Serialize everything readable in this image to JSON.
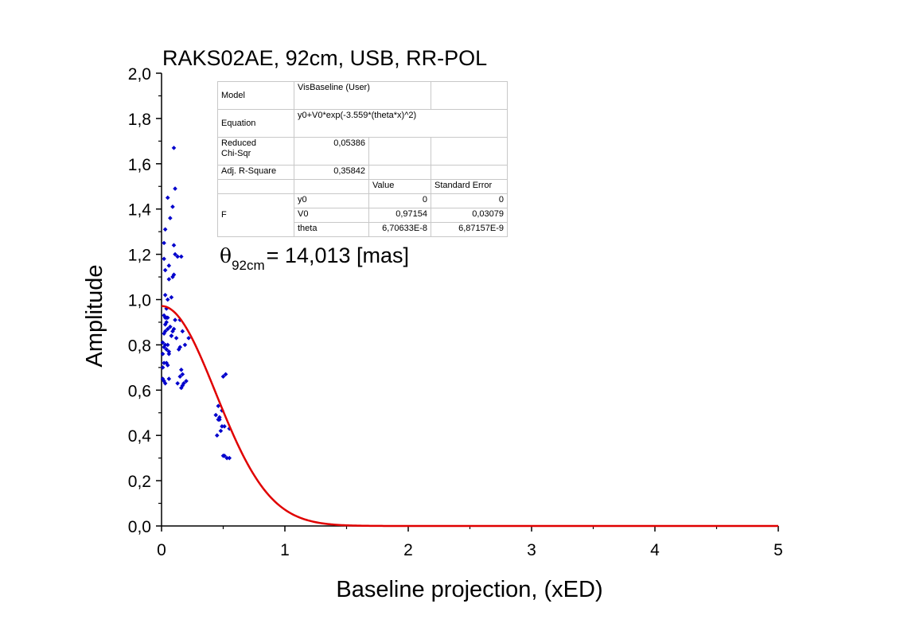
{
  "chart_data": {
    "type": "scatter",
    "title": "RAKS02AE, 92cm, USB, RR-POL",
    "xlabel": "Baseline projection, (xED)",
    "ylabel": "Amplitude",
    "xlim": [
      0,
      5
    ],
    "ylim": [
      0,
      2.0
    ],
    "x_ticks": [
      "0",
      "1",
      "2",
      "3",
      "4",
      "5"
    ],
    "y_ticks": [
      "0,0",
      "0,2",
      "0,4",
      "0,6",
      "0,8",
      "1,0",
      "1,2",
      "1,4",
      "1,6",
      "1,8",
      "2,0"
    ],
    "grid": false,
    "colors": {
      "points": "#0000cc",
      "fit": "#e00000",
      "axes": "#000000"
    },
    "points": {
      "x": [
        0.1,
        0.02,
        0.03,
        0.05,
        0.07,
        0.09,
        0.11,
        0.1,
        0.13,
        0.02,
        0.03,
        0.06,
        0.1,
        0.11,
        0.16,
        0.06,
        0.09,
        0.03,
        0.05,
        0.04,
        0.02,
        0.05,
        0.07,
        0.09,
        0.11,
        0.15,
        0.17,
        0.19,
        0.22,
        0.03,
        0.05,
        0.08,
        0.12,
        0.03,
        0.04,
        0.06,
        0.01,
        0.02,
        0.04,
        0.08,
        0.1,
        0.14,
        0.15,
        0.16,
        0.17,
        0.01,
        0.02,
        0.03,
        0.05,
        0.01,
        0.02,
        0.03,
        0.04,
        0.08,
        0.18,
        0.17,
        0.16,
        0.2,
        0.13,
        0.15,
        0.06,
        0.02,
        0.01,
        0.03,
        0.04,
        0.05,
        0.06,
        0.44,
        0.46,
        0.47,
        0.49,
        0.5,
        0.52,
        0.55,
        0.45,
        0.48,
        0.5,
        0.53,
        0.51,
        0.49,
        0.46,
        0.47,
        0.51,
        0.55
      ],
      "y": [
        1.67,
        1.25,
        1.31,
        1.45,
        1.36,
        1.41,
        1.49,
        1.24,
        1.19,
        1.18,
        1.13,
        1.15,
        1.11,
        1.2,
        1.19,
        1.09,
        1.1,
        1.02,
        1.0,
        0.96,
        0.93,
        0.92,
        0.88,
        0.86,
        0.91,
        0.91,
        0.86,
        0.8,
        0.83,
        0.89,
        0.87,
        0.84,
        0.83,
        0.8,
        0.78,
        0.77,
        0.76,
        0.72,
        0.72,
        0.84,
        0.87,
        0.78,
        0.79,
        0.69,
        0.67,
        0.65,
        0.64,
        0.63,
        0.71,
        0.81,
        0.85,
        0.86,
        0.9,
        1.01,
        0.63,
        0.62,
        0.61,
        0.64,
        0.63,
        0.66,
        0.65,
        0.79,
        0.7,
        0.92,
        0.92,
        0.8,
        0.76,
        0.49,
        0.53,
        0.47,
        0.44,
        0.66,
        0.67,
        0.43,
        0.4,
        0.42,
        0.31,
        0.3,
        0.31,
        0.51,
        0.47,
        0.48,
        0.44,
        0.3
      ]
    },
    "fit": {
      "name": "VisBaseline (User)",
      "equation": "y0+V0*exp(-3.559*(theta*x)^2)",
      "y0": 0,
      "V0": 0.97154,
      "curve_width": 0.62,
      "x_end": 5
    },
    "annotation": {
      "symbol": "θ",
      "subscript": "92cm",
      "text": "= 14,013 [mas]"
    }
  },
  "params_table": {
    "model_label": "Model",
    "model_value": "VisBaseline (User)",
    "equation_label": "Equation",
    "equation_value": "y0+V0*exp(-3.559*(theta*x)^2)",
    "chi_label_1": "Reduced",
    "chi_label_2": "Chi-Sqr",
    "chi_value": "0,05386",
    "adj_label": "Adj. R-Square",
    "adj_value": "0,35842",
    "col_value": "Value",
    "col_error": "Standard Error",
    "group_label": "F",
    "rows": [
      {
        "name": "y0",
        "value": "0",
        "error": "0"
      },
      {
        "name": "V0",
        "value": "0,97154",
        "error": "0,03079"
      },
      {
        "name": "theta",
        "value": "6,70633E-8",
        "error": "6,87157E-9"
      }
    ]
  }
}
